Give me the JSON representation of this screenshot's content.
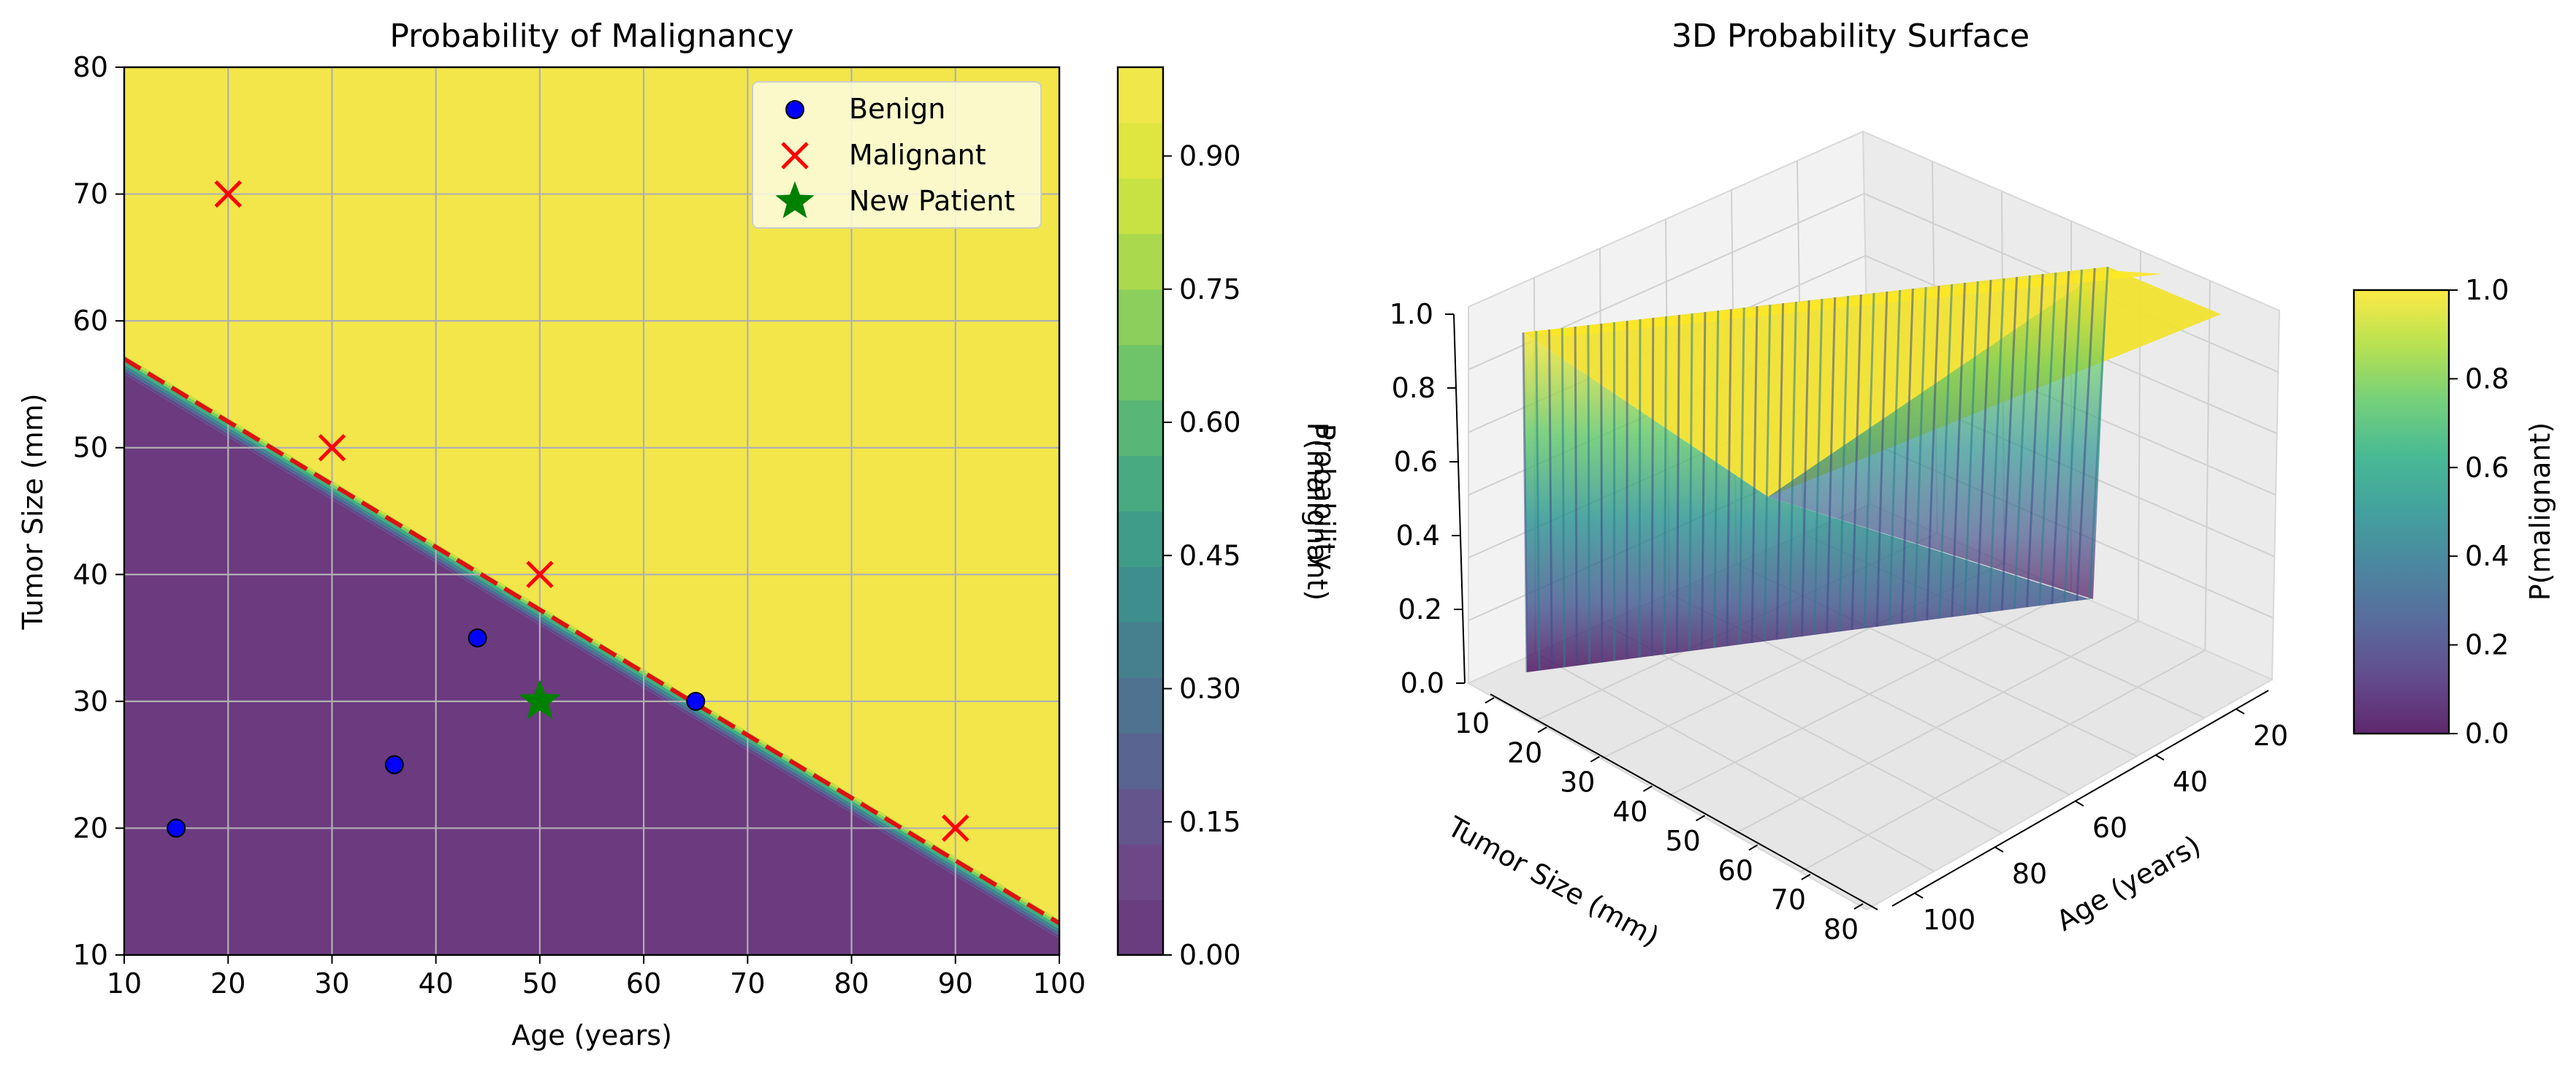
{
  "chart_data": [
    {
      "type": "contour",
      "title": "Probability of Malignancy",
      "xlabel": "Age (years)",
      "ylabel": "Tumor Size (mm)",
      "xlim": [
        10,
        100
      ],
      "ylim": [
        10,
        80
      ],
      "xticks": [
        "10",
        "20",
        "30",
        "40",
        "50",
        "60",
        "70",
        "80",
        "90",
        "100"
      ],
      "yticks": [
        "10",
        "20",
        "30",
        "40",
        "50",
        "60",
        "70",
        "80"
      ],
      "grid": true,
      "decision_boundary": {
        "style": "red dashed",
        "points": [
          [
            10,
            57
          ],
          [
            100,
            12.5
          ]
        ]
      },
      "series": [
        {
          "name": "Benign",
          "marker": "circle",
          "color": "#0000ff",
          "points": [
            [
              15,
              20
            ],
            [
              36,
              25
            ],
            [
              44,
              35
            ],
            [
              65,
              30
            ]
          ]
        },
        {
          "name": "Malignant",
          "marker": "x",
          "color": "#ff0000",
          "points": [
            [
              20,
              70
            ],
            [
              30,
              50
            ],
            [
              50,
              40
            ],
            [
              90,
              20
            ]
          ]
        },
        {
          "name": "New Patient",
          "marker": "star",
          "color": "#008000",
          "points": [
            [
              50,
              30
            ]
          ]
        }
      ],
      "legend": {
        "position": "top-right",
        "entries": [
          "Benign",
          "Malignant",
          "New Patient"
        ]
      },
      "colorbar": {
        "label": "P(malignant)",
        "ticks": [
          "0.00",
          "0.15",
          "0.30",
          "0.45",
          "0.60",
          "0.75",
          "0.90"
        ],
        "range": [
          0,
          1
        ],
        "colormap": "viridis"
      }
    },
    {
      "type": "surface",
      "title": "3D Probability Surface",
      "xlabel": "Tumor Size (mm)",
      "ylabel": "Age (years)",
      "zlabel": "Probability",
      "x_ticks": [
        "10",
        "20",
        "30",
        "40",
        "50",
        "60",
        "70",
        "80"
      ],
      "y_ticks": [
        "20",
        "40",
        "60",
        "80",
        "100"
      ],
      "z_ticks": [
        "0.0",
        "0.2",
        "0.4",
        "0.6",
        "0.8",
        "1.0"
      ],
      "xlim": [
        10,
        80
      ],
      "ylim": [
        10,
        100
      ],
      "zlim": [
        0,
        1
      ],
      "colorbar": {
        "label": "P(malignant)",
        "ticks": [
          "0.0",
          "0.2",
          "0.4",
          "0.6",
          "0.8",
          "1.0"
        ],
        "range": [
          0,
          1
        ],
        "colormap": "viridis"
      }
    }
  ],
  "colors": {
    "viridis": [
      "#440154",
      "#472c7a",
      "#3b518b",
      "#2c718e",
      "#21908d",
      "#27ad81",
      "#5cc863",
      "#aadc32",
      "#fde725"
    ],
    "benign": "#0000ff",
    "malignant": "#ff0000",
    "new_patient": "#008000",
    "boundary": "#ff0000",
    "grid": "#b0b0b0"
  }
}
